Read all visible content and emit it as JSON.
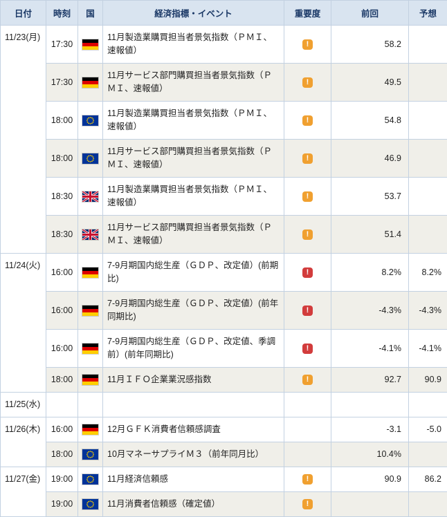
{
  "colors": {
    "header_bg": "#d9e4f0",
    "header_text": "#1a3866",
    "body_text": "#222222",
    "border": "#c3d1e1",
    "row_alt_bg": "#f0efe9",
    "importance_medium": "#f0a030",
    "importance_high": "#d23c3c"
  },
  "importance_icon": {
    "glyph": "!"
  },
  "flags": {
    "germany": {
      "stripes": [
        "#000000",
        "#dd0000",
        "#ffce00"
      ]
    },
    "eu": {
      "bg": "#003399",
      "star": "#ffcc00"
    },
    "uk": {
      "bg": "#012169",
      "white": "#ffffff",
      "red": "#c8102e"
    }
  },
  "table": {
    "columns": [
      {
        "key": "date",
        "label": "日付"
      },
      {
        "key": "time",
        "label": "時刻"
      },
      {
        "key": "country",
        "label": "国"
      },
      {
        "key": "event",
        "label": "経済指標・イベント"
      },
      {
        "key": "imp",
        "label": "重要度"
      },
      {
        "key": "prev",
        "label": "前回"
      },
      {
        "key": "fore",
        "label": "予想"
      }
    ],
    "rows": [
      {
        "date": "11/23(月)",
        "time": "17:30",
        "country": "germany",
        "event": "11月製造業購買担当者景気指数（ＰＭＩ、速報値）",
        "importance": "medium",
        "previous": "58.2",
        "forecast": ""
      },
      {
        "date": "",
        "time": "17:30",
        "country": "germany",
        "event": "11月サービス部門購買担当者景気指数（ＰＭＩ、速報値）",
        "importance": "medium",
        "previous": "49.5",
        "forecast": ""
      },
      {
        "date": "",
        "time": "18:00",
        "country": "eu",
        "event": "11月製造業購買担当者景気指数（ＰＭＩ、速報値）",
        "importance": "medium",
        "previous": "54.8",
        "forecast": ""
      },
      {
        "date": "",
        "time": "18:00",
        "country": "eu",
        "event": "11月サービス部門購買担当者景気指数（ＰＭＩ、速報値）",
        "importance": "medium",
        "previous": "46.9",
        "forecast": ""
      },
      {
        "date": "",
        "time": "18:30",
        "country": "uk",
        "event": "11月製造業購買担当者景気指数（ＰＭＩ、速報値）",
        "importance": "medium",
        "previous": "53.7",
        "forecast": ""
      },
      {
        "date": "",
        "time": "18:30",
        "country": "uk",
        "event": "11月サービス部門購買担当者景気指数（ＰＭＩ、速報値）",
        "importance": "medium",
        "previous": "51.4",
        "forecast": ""
      },
      {
        "date": "11/24(火)",
        "time": "16:00",
        "country": "germany",
        "event": "7-9月期国内総生産（ＧＤＰ、改定値）(前期比)",
        "importance": "high",
        "previous": "8.2%",
        "forecast": "8.2%"
      },
      {
        "date": "",
        "time": "16:00",
        "country": "germany",
        "event": "7-9月期国内総生産（ＧＤＰ、改定値）(前年同期比)",
        "importance": "high",
        "previous": "-4.3%",
        "forecast": "-4.3%"
      },
      {
        "date": "",
        "time": "16:00",
        "country": "germany",
        "event": "7-9月期国内総生産（ＧＤＰ、改定値、季調前）(前年同期比)",
        "importance": "high",
        "previous": "-4.1%",
        "forecast": "-4.1%"
      },
      {
        "date": "",
        "time": "18:00",
        "country": "germany",
        "event": "11月ＩＦＯ企業業況感指数",
        "importance": "medium",
        "previous": "92.7",
        "forecast": "90.9"
      },
      {
        "date": "11/25(水)",
        "time": "",
        "country": "",
        "event": "",
        "importance": "",
        "previous": "",
        "forecast": ""
      },
      {
        "date": "11/26(木)",
        "time": "16:00",
        "country": "germany",
        "event": "12月ＧＦＫ消費者信頼感調査",
        "importance": "",
        "previous": "-3.1",
        "forecast": "-5.0"
      },
      {
        "date": "",
        "time": "18:00",
        "country": "eu",
        "event": "10月マネーサプライＭ３（前年同月比）",
        "importance": "",
        "previous": "10.4%",
        "forecast": ""
      },
      {
        "date": "11/27(金)",
        "time": "19:00",
        "country": "eu",
        "event": "11月経済信頼感",
        "importance": "medium",
        "previous": "90.9",
        "forecast": "86.2"
      },
      {
        "date": "",
        "time": "19:00",
        "country": "eu",
        "event": "11月消費者信頼感（確定値）",
        "importance": "medium",
        "previous": "",
        "forecast": ""
      }
    ]
  }
}
